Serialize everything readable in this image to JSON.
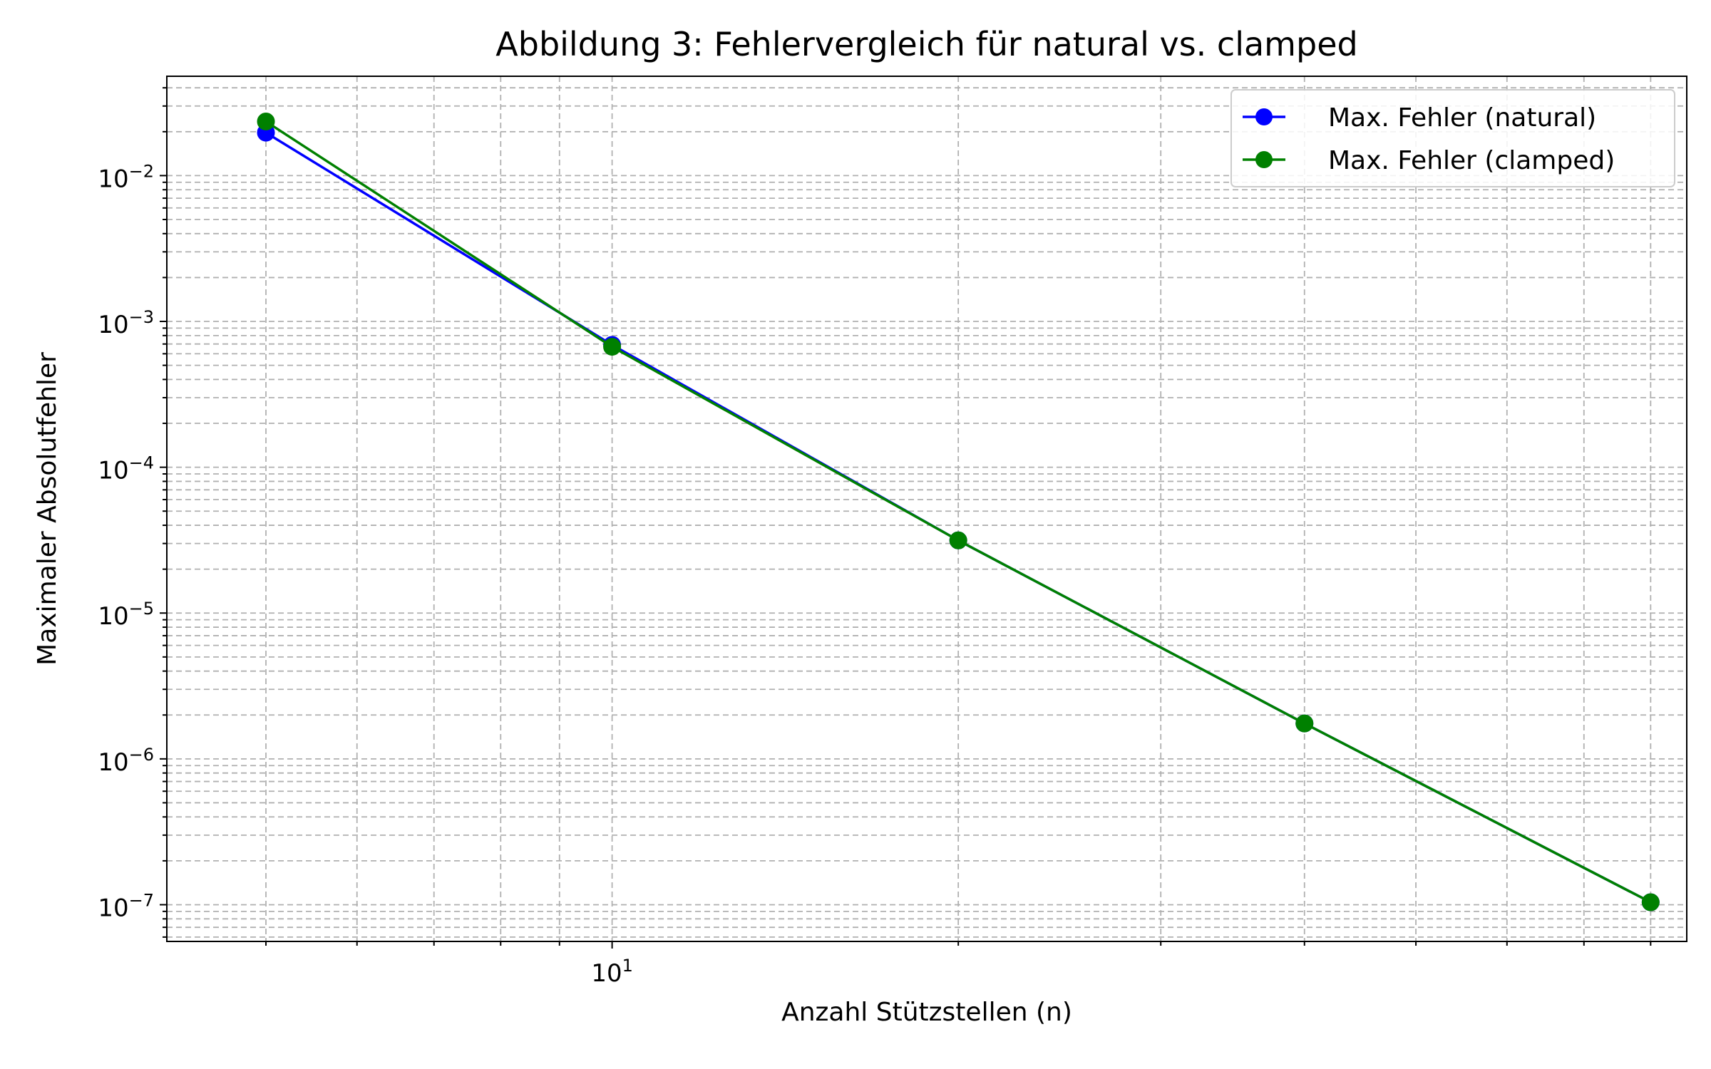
{
  "chart_data": {
    "type": "line",
    "title": "Abbildung 3: Fehlervergleich für natural vs. clamped",
    "xlabel": "Anzahl Stützstellen (n)",
    "ylabel": "Maximaler Absolutfehler",
    "xscale": "log",
    "yscale": "log",
    "xlim": [
      4.1,
      86
    ],
    "ylim": [
      5.6e-08,
      0.048
    ],
    "x": [
      5,
      10,
      20,
      40,
      80
    ],
    "x_ticks": [
      {
        "value": 10,
        "base": "10",
        "exp": "1"
      }
    ],
    "y_ticks": [
      {
        "value": 1e-07,
        "base": "10",
        "exp": "−7"
      },
      {
        "value": 1e-06,
        "base": "10",
        "exp": "−6"
      },
      {
        "value": 1e-05,
        "base": "10",
        "exp": "−5"
      },
      {
        "value": 0.0001,
        "base": "10",
        "exp": "−4"
      },
      {
        "value": 0.001,
        "base": "10",
        "exp": "−3"
      },
      {
        "value": 0.01,
        "base": "10",
        "exp": "−2"
      }
    ],
    "grid": true,
    "grid_minor": true,
    "legend_position": "top-right",
    "series": [
      {
        "name": "Max. Fehler (natural)",
        "color": "#0000ff",
        "marker": "circle",
        "values": [
          0.0197,
          0.00069,
          3.15e-05,
          1.75e-06,
          1.04e-07
        ]
      },
      {
        "name": "Max. Fehler (clamped)",
        "color": "#008000",
        "marker": "circle",
        "values": [
          0.0235,
          0.00067,
          3.15e-05,
          1.75e-06,
          1.04e-07
        ]
      }
    ]
  }
}
